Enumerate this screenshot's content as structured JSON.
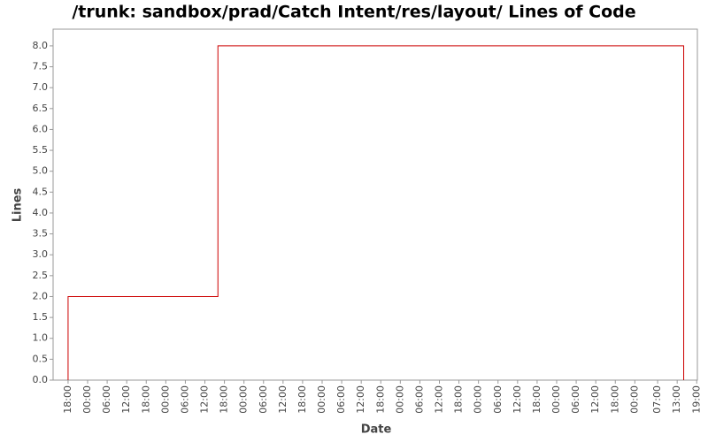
{
  "chart_data": {
    "type": "line",
    "title": "/trunk: sandbox/prad/Catch Intent/res/layout/ Lines of Code",
    "x_label": "Date",
    "y_label": "Lines",
    "series": [
      {
        "color": "#cc0000",
        "x": [
          0,
          0,
          46,
          46,
          189,
          189
        ],
        "values": [
          0,
          2,
          2,
          8,
          8,
          0
        ]
      }
    ],
    "xlim": [
      -4.6,
      193.2
    ],
    "ylim": [
      0,
      8.4
    ],
    "xticks": [
      {
        "value": 0,
        "label": "18:00"
      },
      {
        "value": 6,
        "label": "00:00"
      },
      {
        "value": 12,
        "label": "06:00"
      },
      {
        "value": 18,
        "label": "12:00"
      },
      {
        "value": 24,
        "label": "18:00"
      },
      {
        "value": 30,
        "label": "00:00"
      },
      {
        "value": 36,
        "label": "06:00"
      },
      {
        "value": 42,
        "label": "12:00"
      },
      {
        "value": 48,
        "label": "18:00"
      },
      {
        "value": 54,
        "label": "00:00"
      },
      {
        "value": 60,
        "label": "06:00"
      },
      {
        "value": 66,
        "label": "12:00"
      },
      {
        "value": 72,
        "label": "18:00"
      },
      {
        "value": 78,
        "label": "00:00"
      },
      {
        "value": 84,
        "label": "06:00"
      },
      {
        "value": 90,
        "label": "12:00"
      },
      {
        "value": 96,
        "label": "18:00"
      },
      {
        "value": 102,
        "label": "00:00"
      },
      {
        "value": 108,
        "label": "06:00"
      },
      {
        "value": 114,
        "label": "12:00"
      },
      {
        "value": 120,
        "label": "18:00"
      },
      {
        "value": 126,
        "label": "00:00"
      },
      {
        "value": 132,
        "label": "06:00"
      },
      {
        "value": 138,
        "label": "12:00"
      },
      {
        "value": 144,
        "label": "18:00"
      },
      {
        "value": 150,
        "label": "00:00"
      },
      {
        "value": 156,
        "label": "06:00"
      },
      {
        "value": 162,
        "label": "12:00"
      },
      {
        "value": 168,
        "label": "18:00"
      },
      {
        "value": 174,
        "label": "00:00"
      },
      {
        "value": 181,
        "label": "07:00"
      },
      {
        "value": 187,
        "label": "13:00"
      },
      {
        "value": 193,
        "label": "19:00"
      }
    ],
    "yticks": [
      {
        "value": 0,
        "label": "0.0"
      },
      0.5,
      {
        "value": 1,
        "label": "1.0"
      },
      1.5,
      {
        "value": 2,
        "label": "2.0"
      },
      2.5,
      {
        "value": 3,
        "label": "3.0"
      },
      3.5,
      {
        "value": 4,
        "label": "4.0"
      },
      4.5,
      {
        "value": 5,
        "label": "5.0"
      },
      5.5,
      {
        "value": 6,
        "label": "6.0"
      },
      6.5,
      {
        "value": 7,
        "label": "7.0"
      },
      7.5,
      {
        "value": 8,
        "label": "8.0"
      }
    ]
  }
}
